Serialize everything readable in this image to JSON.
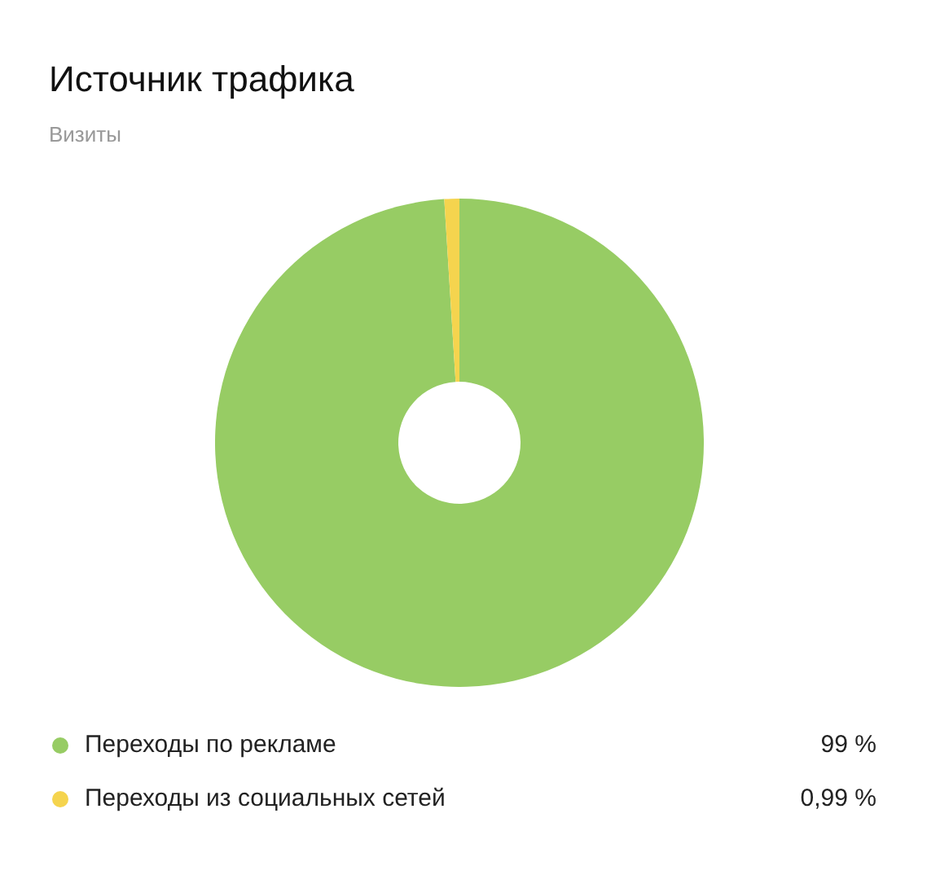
{
  "chart_data": {
    "type": "donut",
    "title": "Источник трафика",
    "subtitle": "Визиты",
    "categories": [
      "Переходы по рекламе",
      "Переходы из социальных сетей"
    ],
    "values": [
      99,
      0.99
    ],
    "colors": [
      "#97cc64",
      "#f5d44e"
    ],
    "value_labels": [
      "99 %",
      "0,99 %"
    ],
    "legend": "bottom"
  }
}
